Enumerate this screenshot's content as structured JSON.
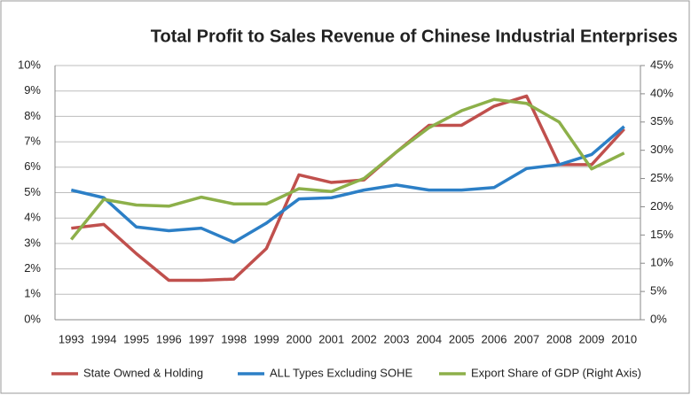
{
  "chart_data": {
    "type": "line",
    "title": "Total Profit to Sales Revenue of Chinese Industrial Enterprises",
    "categories": [
      "1993",
      "1994",
      "1995",
      "1996",
      "1997",
      "1998",
      "1999",
      "2000",
      "2001",
      "2002",
      "2003",
      "2004",
      "2005",
      "2006",
      "2007",
      "2008",
      "2009",
      "2010"
    ],
    "series": [
      {
        "name": "State Owned & Holding",
        "color": "#c0504d",
        "values": [
          3.6,
          3.75,
          2.6,
          1.55,
          1.55,
          1.6,
          2.8,
          5.7,
          5.4,
          5.5,
          6.6,
          7.65,
          7.65,
          8.4,
          8.8,
          6.1,
          6.1,
          7.5
        ]
      },
      {
        "name": "ALL Types Excluding SOHE",
        "color": "#2c7fc6",
        "values": [
          5.1,
          4.8,
          3.65,
          3.5,
          3.6,
          3.05,
          3.8,
          4.75,
          4.8,
          5.1,
          5.3,
          5.1,
          5.1,
          5.2,
          5.95,
          6.1,
          6.5,
          7.6
        ]
      },
      {
        "name": "Export Share of GDP (Right Axis)",
        "color": "#8db04a",
        "axis": "y2",
        "values": [
          14.2,
          21.3,
          20.3,
          20.1,
          21.7,
          20.5,
          20.5,
          23.2,
          22.7,
          25,
          29.7,
          34,
          37,
          39,
          38.3,
          35,
          26.7,
          29.5
        ]
      }
    ],
    "ylim": [
      0,
      10
    ],
    "yticks": [
      {
        "value": 0,
        "label": "0%"
      },
      {
        "value": 1,
        "label": "1%"
      },
      {
        "value": 2,
        "label": "2%"
      },
      {
        "value": 3,
        "label": "3%"
      },
      {
        "value": 4,
        "label": "4%"
      },
      {
        "value": 5,
        "label": "5%"
      },
      {
        "value": 6,
        "label": "6%"
      },
      {
        "value": 7,
        "label": "7%"
      },
      {
        "value": 8,
        "label": "8%"
      },
      {
        "value": 9,
        "label": "9%"
      },
      {
        "value": 10,
        "label": "10%"
      }
    ],
    "y2lim": [
      0,
      45
    ],
    "y2ticks": [
      {
        "value": 0,
        "label": "0%"
      },
      {
        "value": 5,
        "label": "5%"
      },
      {
        "value": 10,
        "label": "10%"
      },
      {
        "value": 15,
        "label": "15%"
      },
      {
        "value": 20,
        "label": "20%"
      },
      {
        "value": 25,
        "label": "25%"
      },
      {
        "value": 30,
        "label": "30%"
      },
      {
        "value": 35,
        "label": "35%"
      },
      {
        "value": 40,
        "label": "40%"
      },
      {
        "value": 45,
        "label": "45%"
      }
    ],
    "grid": true
  }
}
